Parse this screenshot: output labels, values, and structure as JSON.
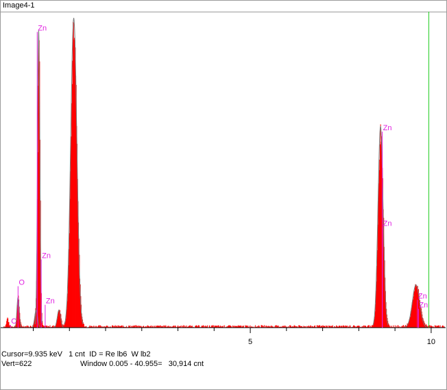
{
  "window": {
    "title": "Image4-1"
  },
  "chart_data": {
    "type": "bar",
    "xlabel": "",
    "ylabel": "",
    "xlim": [
      -1.9,
      10.4
    ],
    "ylim": [
      0,
      622
    ],
    "x_ticks": [
      {
        "value": 5,
        "label": "5"
      },
      {
        "value": 10,
        "label": "10"
      }
    ],
    "cursor_x": 9.935,
    "colors": {
      "spectrum": "#ff0000",
      "outline": "#7a7a7a",
      "label": "#e020e0",
      "cursor": "#22cc22",
      "axis": "#000000"
    },
    "spectrum_peaks": [
      {
        "center": -1.72,
        "height": 18,
        "width": 0.025
      },
      {
        "center": -1.42,
        "height": 60,
        "width": 0.03
      },
      {
        "center": -0.92,
        "height": 35,
        "width": 0.04
      },
      {
        "center": -0.85,
        "height": 590,
        "width": 0.032
      },
      {
        "center": 0.12,
        "height": 615,
        "width": 0.085
      },
      {
        "center": -0.29,
        "height": 35,
        "width": 0.045
      },
      {
        "center": 8.6,
        "height": 400,
        "width": 0.07
      },
      {
        "center": 9.58,
        "height": 85,
        "width": 0.1
      }
    ],
    "element_labels": [
      {
        "element": "C",
        "x": -1.63,
        "y": 8
      },
      {
        "element": "O",
        "x": -1.42,
        "y": 85
      },
      {
        "element": "Zn",
        "x": -0.89,
        "y": 590
      },
      {
        "element": "Zn",
        "x": -0.78,
        "y": 138
      },
      {
        "element": "Zn",
        "x": -0.67,
        "y": 48
      },
      {
        "element": "Zn",
        "x": 8.65,
        "y": 392
      },
      {
        "element": "Zn",
        "x": 8.65,
        "y": 202
      },
      {
        "element": "Zn",
        "x": 9.62,
        "y": 58
      },
      {
        "element": "Zn",
        "x": 9.65,
        "y": 40
      }
    ]
  },
  "status": {
    "cursor_line": "Cursor=9.935 keV   1 cnt  ID = Re lb6  W lb2",
    "vert": "Vert=622",
    "window_line": "Window 0.005 - 40.955=   30,914 cnt"
  }
}
